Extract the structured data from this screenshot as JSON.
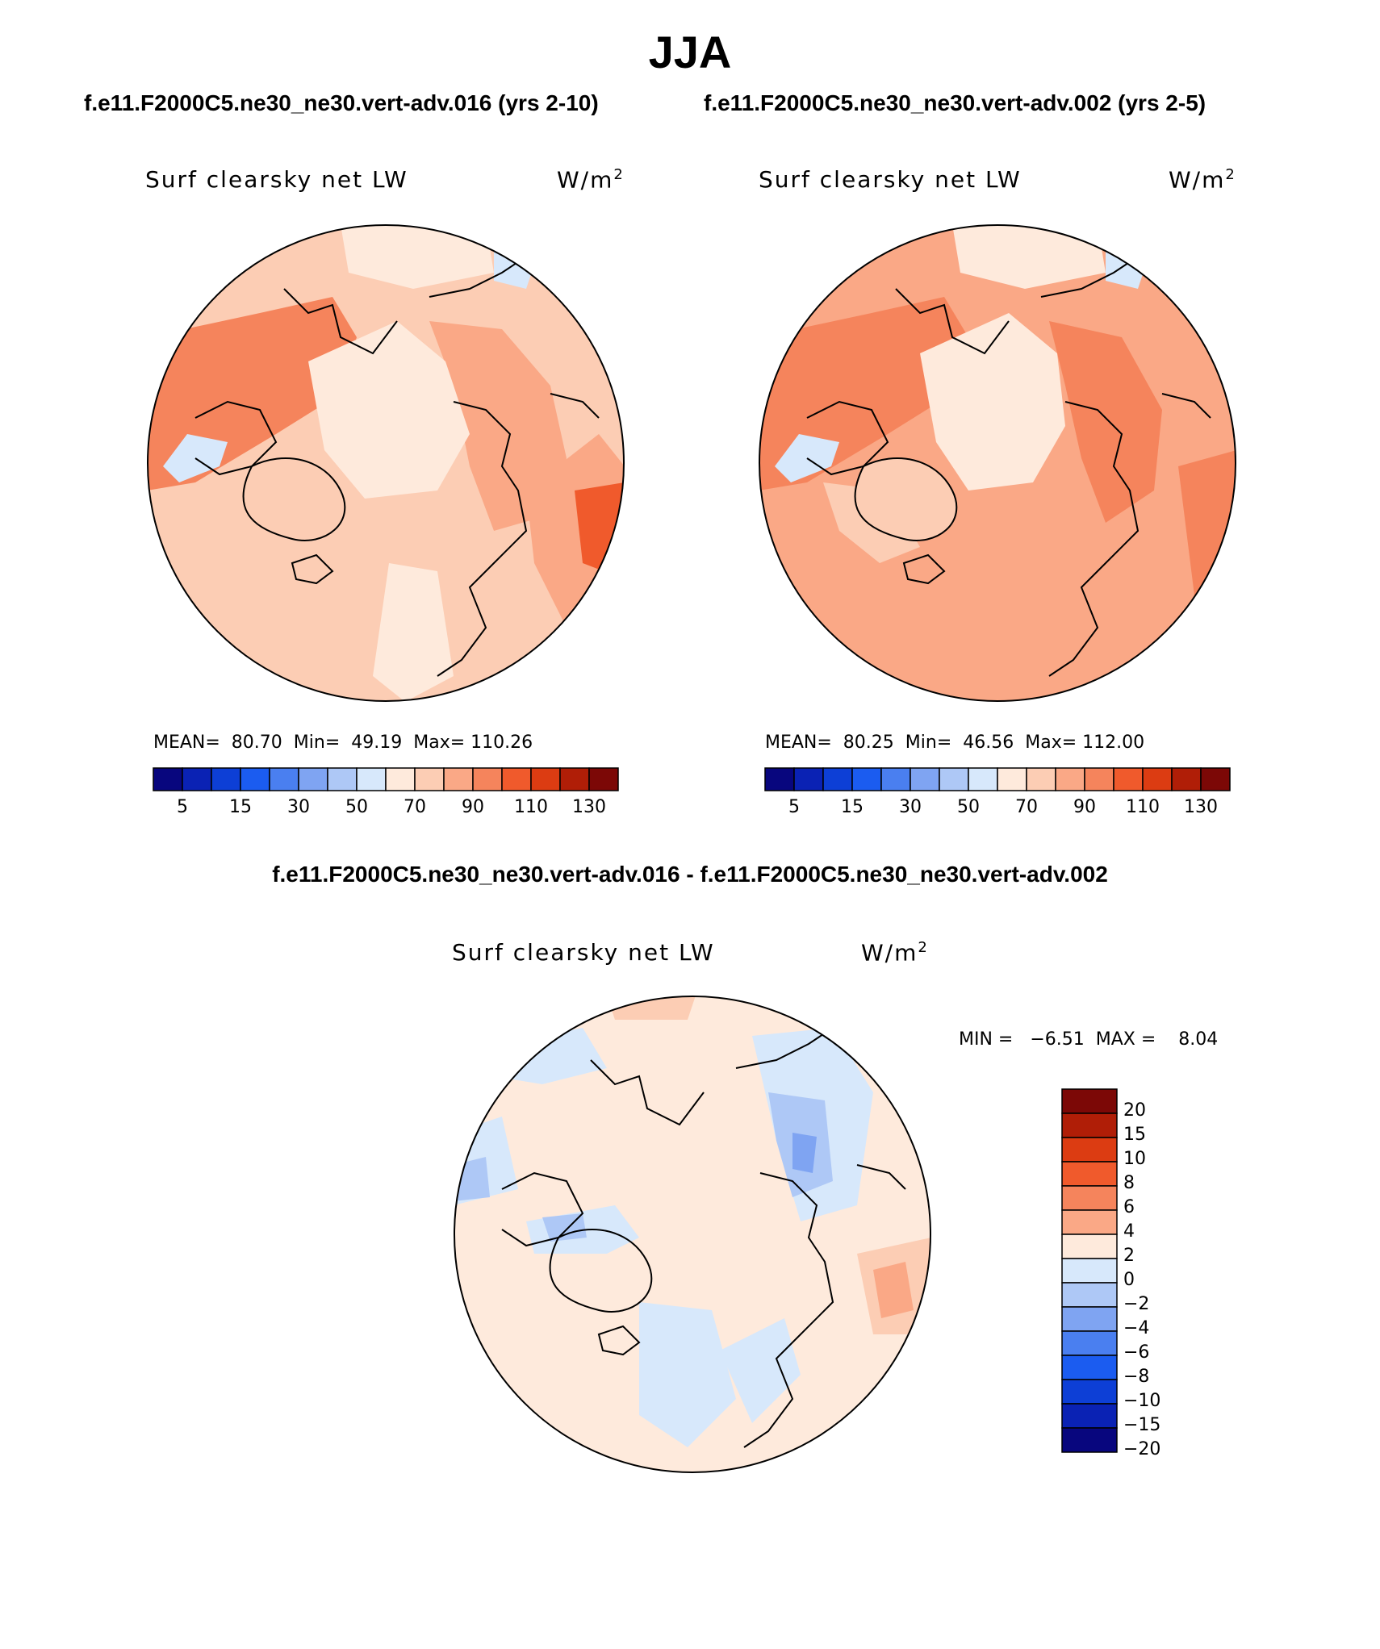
{
  "title": "JJA",
  "case1_title": "f.e11.F2000C5.ne30_ne30.vert-adv.016 (yrs 2-10)",
  "case2_title": "f.e11.F2000C5.ne30_ne30.vert-adv.002 (yrs 2-5)",
  "diff_title": "f.e11.F2000C5.ne30_ne30.vert-adv.016 - f.e11.F2000C5.ne30_ne30.vert-adv.002",
  "variable": "Surf clearsky net LW",
  "units_base": "W/m",
  "units_exp": "2",
  "panels": [
    {
      "mean_text": "MEAN=  80.70",
      "min_text": "Min=  49.19",
      "max_text": "Max= 110.26"
    },
    {
      "mean_text": "MEAN=  80.25",
      "min_text": "Min=  46.56",
      "max_text": "Max= 112.00"
    }
  ],
  "diff_stats": "MIN =   −6.51  MAX =    8.04",
  "abs_colorbar": {
    "colors": [
      "#08067e",
      "#0a22b4",
      "#0d3fd6",
      "#1b5cf0",
      "#4a7ff0",
      "#7fa4f2",
      "#aec8f6",
      "#d7e8fb",
      "#feeadc",
      "#fccdb4",
      "#faa886",
      "#f5845c",
      "#f05a2c",
      "#dc3c12",
      "#b01e07",
      "#7c0806"
    ],
    "tick_labels": [
      "5",
      "15",
      "30",
      "50",
      "70",
      "90",
      "110",
      "130"
    ]
  },
  "diff_colorbar": {
    "colors_top_to_bottom": [
      "#7c0806",
      "#b01e07",
      "#dc3c12",
      "#f05a2c",
      "#f5845c",
      "#faa886",
      "#feeadc",
      "#d7e8fb",
      "#aec8f6",
      "#7fa4f2",
      "#4a7ff0",
      "#1b5cf0",
      "#0d3fd6",
      "#0a22b4",
      "#08067e"
    ],
    "tick_labels": [
      "20",
      "15",
      "10",
      "8",
      "6",
      "4",
      "2",
      "0",
      "−2",
      "−4",
      "−6",
      "−8",
      "−10",
      "−15",
      "−20"
    ]
  }
}
